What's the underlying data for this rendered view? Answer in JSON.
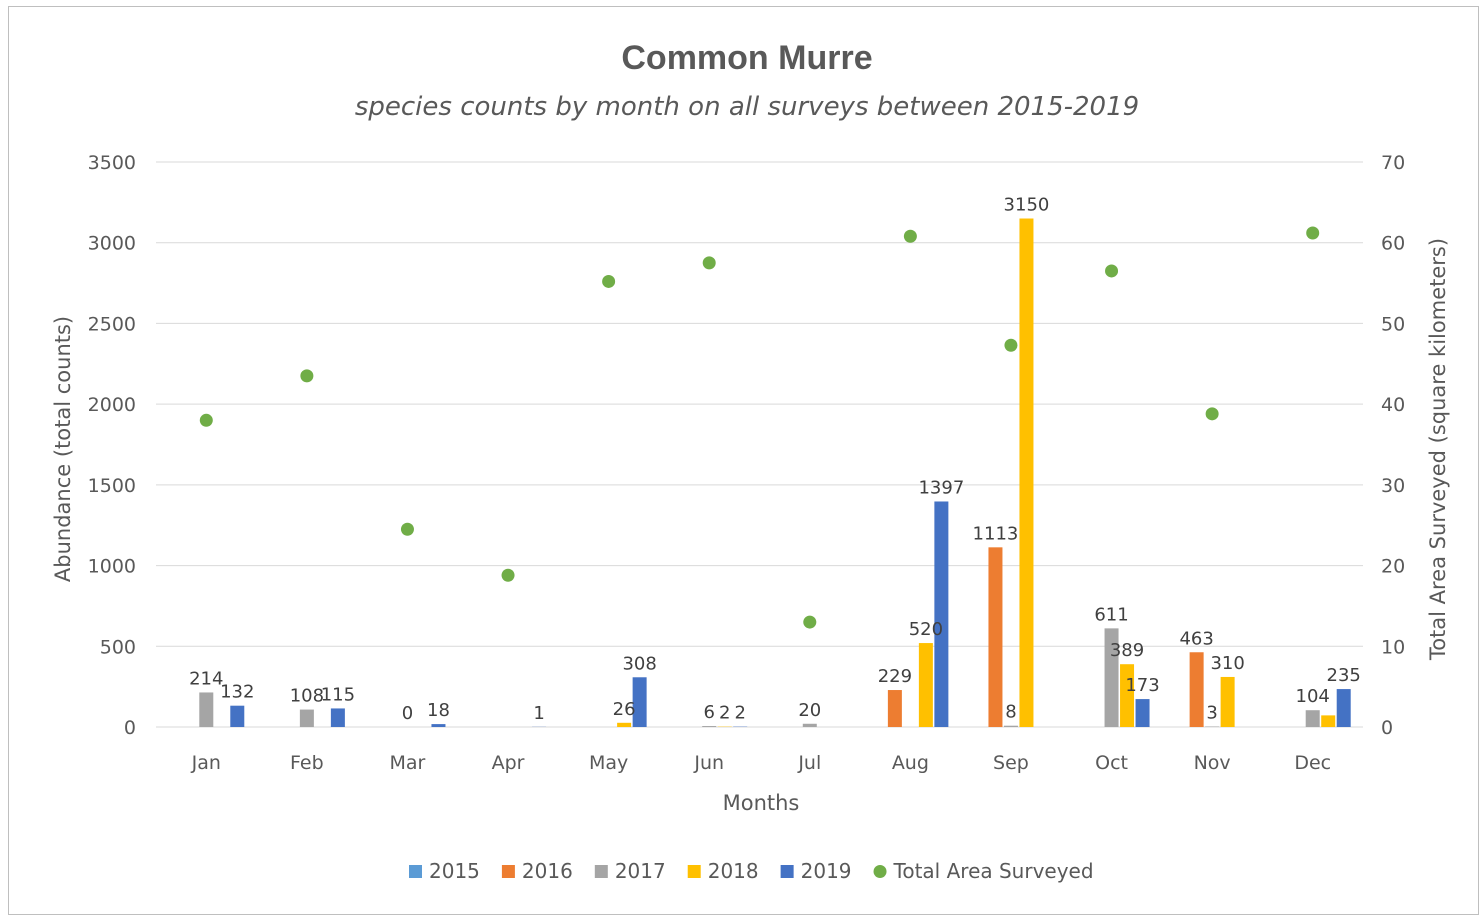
{
  "chart_data": {
    "type": "bar",
    "title": "Common Murre",
    "subtitle": "species counts by month on all surveys between 2015-2019",
    "xlabel": "Months",
    "ylabel": "Abundance (total counts)",
    "y2label": "Total Area Surveyed (square kilometers)",
    "ylim": [
      0,
      3500
    ],
    "y2lim": [
      0,
      70
    ],
    "yticks": [
      "0",
      "500",
      "1000",
      "1500",
      "2000",
      "2500",
      "3000",
      "3500"
    ],
    "y2ticks": [
      "0",
      "10",
      "20",
      "30",
      "40",
      "50",
      "60",
      "70"
    ],
    "categories": [
      "Jan",
      "Feb",
      "Mar",
      "Apr",
      "May",
      "Jun",
      "Jul",
      "Aug",
      "Sep",
      "Oct",
      "Nov",
      "Dec"
    ],
    "series": [
      {
        "name": "2015",
        "color": "#5b9bd5",
        "values": [
          null,
          null,
          null,
          null,
          null,
          null,
          null,
          null,
          null,
          null,
          null,
          null
        ],
        "labels": [
          "",
          "",
          "",
          "",
          "",
          "",
          "",
          "",
          "",
          "",
          "",
          ""
        ]
      },
      {
        "name": "2016",
        "color": "#ed7d31",
        "values": [
          null,
          null,
          null,
          null,
          null,
          null,
          null,
          229,
          1113,
          null,
          463,
          null
        ],
        "labels": [
          "",
          "",
          "",
          "",
          "",
          "",
          "",
          "229",
          "1113",
          "",
          "463",
          ""
        ]
      },
      {
        "name": "2017",
        "color": "#a5a5a5",
        "values": [
          214,
          108,
          0,
          null,
          null,
          6,
          20,
          null,
          8,
          611,
          3,
          104
        ],
        "labels": [
          "214",
          "108",
          "0",
          "",
          "",
          "6",
          "20",
          "",
          "8",
          "611",
          "3",
          "104"
        ]
      },
      {
        "name": "2018",
        "color": "#ffc000",
        "values": [
          null,
          null,
          null,
          null,
          26,
          2,
          null,
          520,
          3150,
          389,
          310,
          72
        ],
        "labels": [
          "",
          "",
          "",
          "",
          "26",
          "2",
          "",
          "520",
          "3150",
          "389",
          "310",
          ""
        ]
      },
      {
        "name": "2019",
        "color": "#4472c4",
        "values": [
          132,
          115,
          18,
          1,
          308,
          2,
          null,
          1397,
          null,
          173,
          null,
          235
        ],
        "labels": [
          "132",
          "115",
          "18",
          "1",
          "308",
          "2",
          "",
          "1397",
          "",
          "173",
          "",
          "235"
        ]
      }
    ],
    "scatter": {
      "name": "Total Area Surveyed",
      "color": "#70ad47",
      "axis": "secondary",
      "values": [
        38,
        43.5,
        24.5,
        18.8,
        55.2,
        57.5,
        13,
        60.8,
        47.3,
        56.5,
        38.8,
        61.2
      ]
    },
    "grid": true,
    "legend_position": "bottom"
  }
}
